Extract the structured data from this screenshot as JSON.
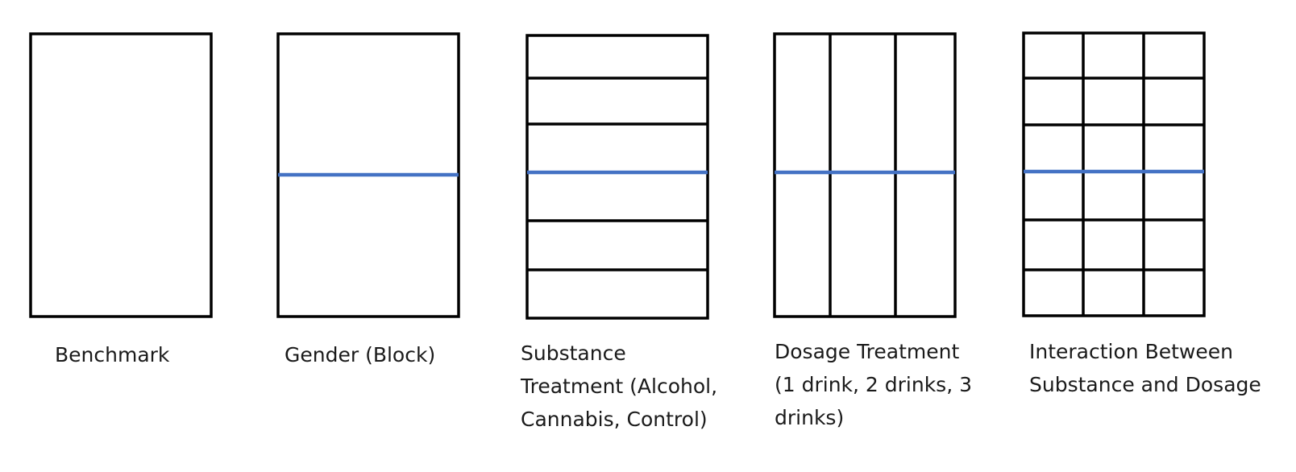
{
  "colors": {
    "grid_line": "#000000",
    "block_line": "#4472c4",
    "text": "#1a1a1a",
    "background": "#ffffff"
  },
  "panels": [
    {
      "id": "benchmark",
      "caption": "Benchmark",
      "block_divider": false,
      "row_divisions": 1,
      "column_divisions": 1
    },
    {
      "id": "gender-block",
      "caption": "Gender (Block)",
      "block_divider": true,
      "row_divisions": 1,
      "column_divisions": 1
    },
    {
      "id": "substance-treatment",
      "caption": "Substance\nTreatment (Alcohol,\nCannabis, Control)",
      "block_divider": true,
      "row_divisions": 6,
      "column_divisions": 1
    },
    {
      "id": "dosage-treatment",
      "caption": "Dosage Treatment\n(1 drink, 2 drinks, 3\ndrinks)",
      "block_divider": true,
      "row_divisions": 1,
      "column_divisions": 3
    },
    {
      "id": "interaction",
      "caption": "Interaction Between\nSubstance and Dosage",
      "block_divider": true,
      "row_divisions": 6,
      "column_divisions": 3
    }
  ]
}
